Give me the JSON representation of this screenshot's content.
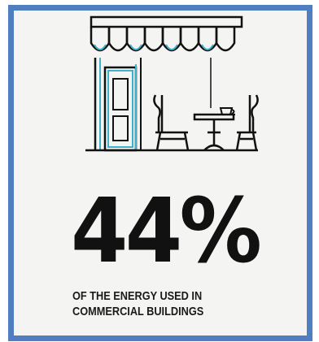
{
  "infographic": {
    "stat_value": "44%",
    "caption_line1": "OF THE ENERGY USED IN",
    "caption_line2": "COMMERCIAL BUILDINGS",
    "illustration_icon": "storefront-cafe-icon"
  },
  "colors": {
    "frame_border": "#4f7fc0",
    "accent": "#3bb3cf",
    "ink": "#111111",
    "background": "#f4f4f2"
  }
}
